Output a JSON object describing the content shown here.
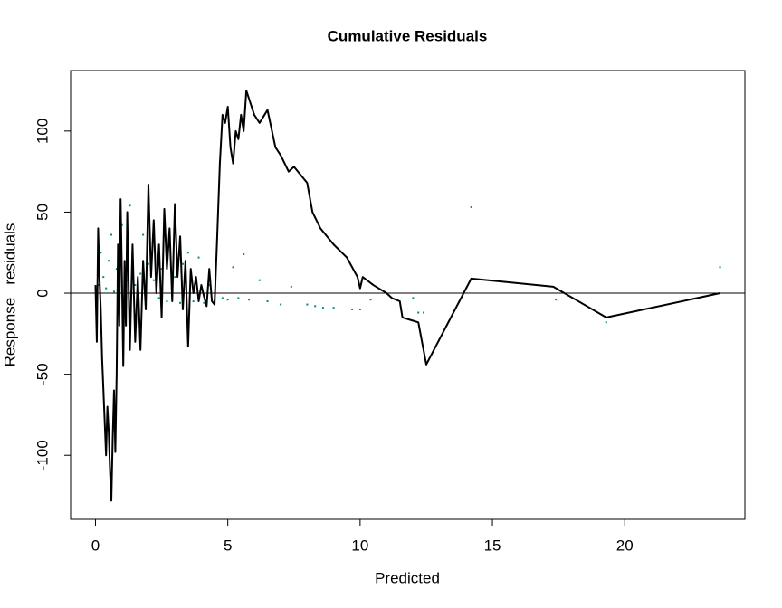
{
  "chart_data": {
    "type": "line",
    "title": "Cumulative Residuals",
    "xlabel": "Predicted",
    "ylabel": "Response   residuals",
    "color": "#000000",
    "x": [
      0,
      0.05,
      0.1,
      0.15,
      0.2,
      0.25,
      0.3,
      0.35,
      0.4,
      0.45,
      0.5,
      0.55,
      0.6,
      0.65,
      0.7,
      0.75,
      0.8,
      0.85,
      0.9,
      0.95,
      1.0,
      1.05,
      1.1,
      1.15,
      1.2,
      1.3,
      1.4,
      1.5,
      1.6,
      1.7,
      1.8,
      1.9,
      2.0,
      2.1,
      2.2,
      2.3,
      2.4,
      2.5,
      2.6,
      2.7,
      2.8,
      2.9,
      3.0,
      3.1,
      3.2,
      3.3,
      3.4,
      3.5,
      3.6,
      3.7,
      3.8,
      3.9,
      4.0,
      4.1,
      4.2,
      4.3,
      4.4,
      4.5,
      4.6,
      4.7,
      4.8,
      4.9,
      5.0,
      5.1,
      5.2,
      5.3,
      5.4,
      5.5,
      5.6,
      5.7,
      5.8,
      6.0,
      6.2,
      6.5,
      6.8,
      7.0,
      7.3,
      7.5,
      8.0,
      8.2,
      8.5,
      9.0,
      9.5,
      9.9,
      10.0,
      10.1,
      10.5,
      11.0,
      11.2,
      11.5,
      11.6,
      12.0,
      12.2,
      12.5,
      14.2,
      17.3,
      19.3,
      23.6
    ],
    "values": [
      5,
      -30,
      40,
      10,
      -10,
      -40,
      -60,
      -80,
      -100,
      -70,
      -85,
      -110,
      -128,
      -90,
      -60,
      -98,
      -50,
      30,
      -20,
      58,
      10,
      -45,
      20,
      -20,
      50,
      -35,
      30,
      -30,
      10,
      -35,
      20,
      -10,
      67,
      10,
      45,
      0,
      30,
      -15,
      52,
      15,
      40,
      -5,
      55,
      10,
      35,
      -10,
      20,
      -33,
      15,
      0,
      10,
      -5,
      5,
      -2,
      -8,
      15,
      -5,
      -7,
      35,
      80,
      110,
      105,
      115,
      90,
      80,
      100,
      95,
      110,
      100,
      125,
      120,
      110,
      105,
      113,
      90,
      85,
      75,
      78,
      68,
      50,
      40,
      30,
      22,
      10,
      3,
      10,
      5,
      0,
      -3,
      -5,
      -15,
      -17,
      -18,
      -44,
      9,
      4,
      -15,
      0
    ],
    "points": {
      "color": "#008b8b",
      "x": [
        0.1,
        0.2,
        0.3,
        0.4,
        0.5,
        0.6,
        0.7,
        0.8,
        0.9,
        1.0,
        1.1,
        1.2,
        1.3,
        1.4,
        1.5,
        1.6,
        1.7,
        1.8,
        1.9,
        2.0,
        2.2,
        2.4,
        2.5,
        2.7,
        2.8,
        3.0,
        3.2,
        3.3,
        3.5,
        3.7,
        3.9,
        4.1,
        4.3,
        4.5,
        4.6,
        4.8,
        5.0,
        5.2,
        5.4,
        5.6,
        5.8,
        6.2,
        6.5,
        7.0,
        7.4,
        8.0,
        8.3,
        8.6,
        9.0,
        9.7,
        10.0,
        10.4,
        12.0,
        12.2,
        12.4,
        14.2,
        17.4,
        19.3,
        23.6
      ],
      "values": [
        5,
        25,
        10,
        3,
        20,
        36,
        1,
        15,
        10,
        42,
        -2,
        8,
        54,
        20,
        5,
        -3,
        12,
        36,
        -4,
        18,
        8,
        -3,
        15,
        -5,
        38,
        10,
        -6,
        18,
        25,
        -5,
        22,
        -6,
        5,
        -5,
        37,
        -3,
        -4,
        16,
        -3,
        24,
        -4,
        8,
        -5,
        -7,
        4,
        -7,
        -8,
        -9,
        -9,
        -10,
        -10,
        -4,
        -3,
        -12,
        -12,
        53,
        -4,
        -18,
        16
      ]
    },
    "hline": 0,
    "xlim": [
      -0.94,
      24.54
    ],
    "ylim": [
      -139.5,
      137.3
    ],
    "xticks": [
      0,
      5,
      10,
      15,
      20
    ],
    "yticks": [
      -100,
      -50,
      0,
      50,
      100
    ]
  }
}
